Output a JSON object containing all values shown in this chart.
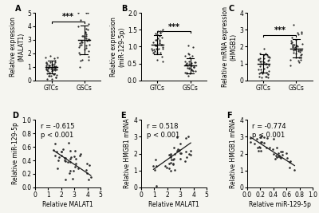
{
  "panel_A": {
    "ylabel": "Relative expression\n(MALAT1)",
    "xlabel_ticks": [
      "GTCs",
      "GSCs"
    ],
    "ylim": [
      0,
      5
    ],
    "yticks": [
      0,
      1,
      2,
      3,
      4,
      5
    ],
    "gtcs_mean": 1.0,
    "gtcs_sd": 0.45,
    "gscs_mean": 3.0,
    "gscs_sd": 1.05,
    "sig": "***",
    "label": "A",
    "n_gtcs": 50,
    "n_gscs": 40
  },
  "panel_B": {
    "ylabel": "Relative expression\n(miR-129-5p)",
    "xlabel_ticks": [
      "GTCs",
      "GSCs"
    ],
    "ylim": [
      0.0,
      2.0
    ],
    "yticks": [
      0.0,
      0.5,
      1.0,
      1.5,
      2.0
    ],
    "gtcs_mean": 1.05,
    "gtcs_sd": 0.28,
    "gscs_mean": 0.44,
    "gscs_sd": 0.22,
    "sig": "***",
    "label": "B",
    "n_gtcs": 38,
    "n_gscs": 35
  },
  "panel_C": {
    "ylabel": "Relative mRNA expression\n(HMGB1)",
    "xlabel_ticks": [
      "GTCs",
      "GSCs"
    ],
    "ylim": [
      0,
      4
    ],
    "yticks": [
      0,
      1,
      2,
      3,
      4
    ],
    "gtcs_mean": 1.0,
    "gtcs_sd": 0.55,
    "gscs_mean": 1.9,
    "gscs_sd": 0.55,
    "sig": "***",
    "label": "C",
    "n_gtcs": 40,
    "n_gscs": 40
  },
  "panel_D": {
    "xlabel": "Relative MALAT1",
    "ylabel": "Relative miR-129-5p",
    "xlim": [
      0,
      5
    ],
    "ylim": [
      0.0,
      1.0
    ],
    "xticks": [
      0,
      1,
      2,
      3,
      4,
      5
    ],
    "yticks": [
      0.0,
      0.2,
      0.4,
      0.6,
      0.8,
      1.0
    ],
    "r": -0.615,
    "p_str": "p < 0.001",
    "x_center": 2.5,
    "x_sd": 0.75,
    "y_intercept": 0.73,
    "slope": -0.13,
    "y_noise": 0.12,
    "label": "D"
  },
  "panel_E": {
    "xlabel": "Relative MALAT1",
    "ylabel": "Relative HMGB1 mRNA",
    "xlim": [
      0,
      5
    ],
    "ylim": [
      0,
      4
    ],
    "xticks": [
      0,
      1,
      2,
      3,
      4,
      5
    ],
    "yticks": [
      0,
      1,
      2,
      3,
      4
    ],
    "r": 0.518,
    "p_str": "p < 0.001",
    "x_center": 2.7,
    "x_sd": 0.72,
    "y_intercept": 0.55,
    "slope": 0.55,
    "y_noise": 0.45,
    "label": "E"
  },
  "panel_F": {
    "xlabel": "Relative miR-129-5p",
    "ylabel": "Relative HMGB1 mRNA",
    "xlim": [
      0.0,
      1.0
    ],
    "ylim": [
      0,
      4
    ],
    "xticks": [
      0.0,
      0.2,
      0.4,
      0.6,
      0.8,
      1.0
    ],
    "yticks": [
      0,
      1,
      2,
      3,
      4
    ],
    "r": -0.774,
    "p_str": "p < 0.001",
    "x_center": 0.42,
    "x_sd": 0.18,
    "y_intercept": 3.1,
    "slope": -2.5,
    "y_noise": 0.35,
    "label": "F"
  },
  "dot_color": "#2b2b2b",
  "line_color": "#1a1a1a",
  "bg_color": "#f5f5f0",
  "fontsize_ylabel": 5.5,
  "fontsize_tick": 5.5,
  "fontsize_panel": 7,
  "fontsize_annot": 6,
  "fontsize_sig": 7
}
